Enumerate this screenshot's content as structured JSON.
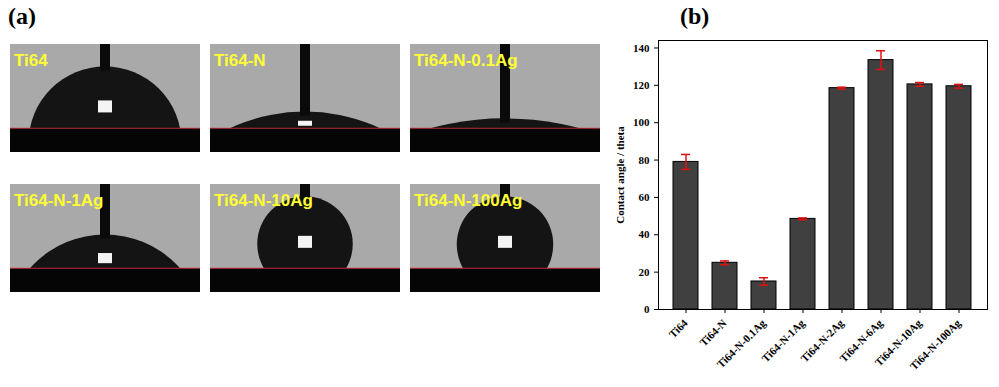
{
  "panel_a": {
    "title": "(a)",
    "images": [
      "Ti64",
      "Ti64-N",
      "Ti64-N-0.1Ag",
      "Ti64-N-1Ag",
      "Ti64-N-10Ag",
      "Ti64-N-100Ag"
    ]
  },
  "chart_data": {
    "type": "bar",
    "title": "(b)",
    "y_label": "Contact angle / theta",
    "categories": [
      "Ti64",
      "Ti64-N",
      "Ti64-N-0.1Ag",
      "Ti64-N-1Ag",
      "Ti64-N-2Ag",
      "Ti64-N-6Ag",
      "Ti64-N-10Ag",
      "Ti64-N-100Ag"
    ],
    "values": [
      79,
      25,
      15,
      48.5,
      118.5,
      133.5,
      120.5,
      119.5
    ],
    "errors": [
      4,
      1,
      2,
      0.5,
      0.5,
      5,
      1,
      1
    ],
    "color": "#404040",
    "ylim": [
      0,
      144
    ],
    "yticks": [
      0,
      20,
      40,
      60,
      80,
      100,
      120,
      140
    ],
    "grid": false
  }
}
